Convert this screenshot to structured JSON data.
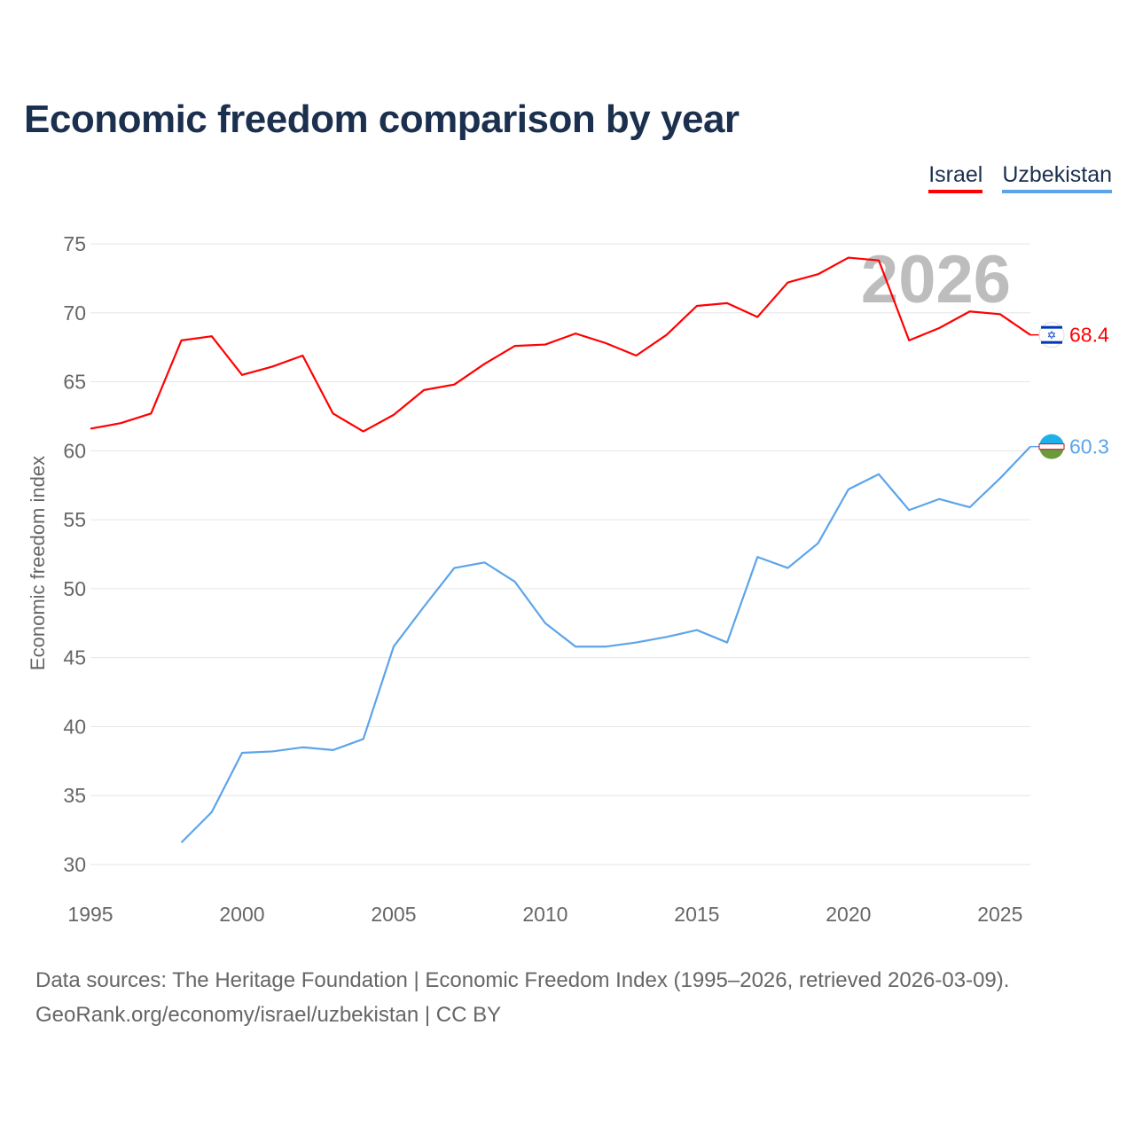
{
  "title": "Economic freedom comparison by year",
  "footer": {
    "line1": "Data sources: The Heritage Foundation | Economic Freedom Index (1995–2026, retrieved 2026-03-09).",
    "line2": "GeoRank.org/economy/israel/uzbekistan | CC BY"
  },
  "chart_data": {
    "type": "line",
    "title": "Economic freedom comparison by year",
    "xlabel": "",
    "ylabel": "Economic freedom index",
    "xlim": [
      1995,
      2026
    ],
    "ylim": [
      30,
      75
    ],
    "xticks": [
      1995,
      2000,
      2005,
      2010,
      2015,
      2020,
      2025
    ],
    "yticks": [
      30,
      35,
      40,
      45,
      50,
      55,
      60,
      65,
      70,
      75
    ],
    "grid": true,
    "legend_position": "top-right",
    "year_watermark": "2026",
    "series": [
      {
        "name": "Israel",
        "color": "#ff0000",
        "end_label": "68.4",
        "flag": "israel-flag",
        "x": [
          1995,
          1996,
          1997,
          1998,
          1999,
          2000,
          2001,
          2002,
          2003,
          2004,
          2005,
          2006,
          2007,
          2008,
          2009,
          2010,
          2011,
          2012,
          2013,
          2014,
          2015,
          2016,
          2017,
          2018,
          2019,
          2020,
          2021,
          2022,
          2023,
          2024,
          2025,
          2026
        ],
        "values": [
          61.6,
          62.0,
          62.7,
          68.0,
          68.3,
          65.5,
          66.1,
          66.9,
          62.7,
          61.4,
          62.6,
          64.4,
          64.8,
          66.3,
          67.6,
          67.7,
          68.5,
          67.8,
          66.9,
          68.4,
          70.5,
          70.7,
          69.7,
          72.2,
          72.8,
          74.0,
          73.8,
          68.0,
          68.9,
          70.1,
          69.9,
          68.4
        ]
      },
      {
        "name": "Uzbekistan",
        "color": "#5ca4ea",
        "end_label": "60.3",
        "flag": "uzbekistan-flag",
        "x": [
          1998,
          1999,
          2000,
          2001,
          2002,
          2003,
          2004,
          2005,
          2006,
          2007,
          2008,
          2009,
          2010,
          2011,
          2012,
          2013,
          2014,
          2015,
          2016,
          2017,
          2018,
          2019,
          2020,
          2021,
          2022,
          2023,
          2024,
          2025,
          2026
        ],
        "values": [
          31.6,
          33.8,
          38.1,
          38.2,
          38.5,
          38.3,
          39.1,
          45.8,
          48.7,
          51.5,
          51.9,
          50.5,
          47.5,
          45.8,
          45.8,
          46.1,
          46.5,
          47.0,
          46.1,
          52.3,
          51.5,
          53.3,
          57.2,
          58.3,
          55.7,
          56.5,
          55.9,
          58.0,
          60.3
        ]
      }
    ]
  }
}
